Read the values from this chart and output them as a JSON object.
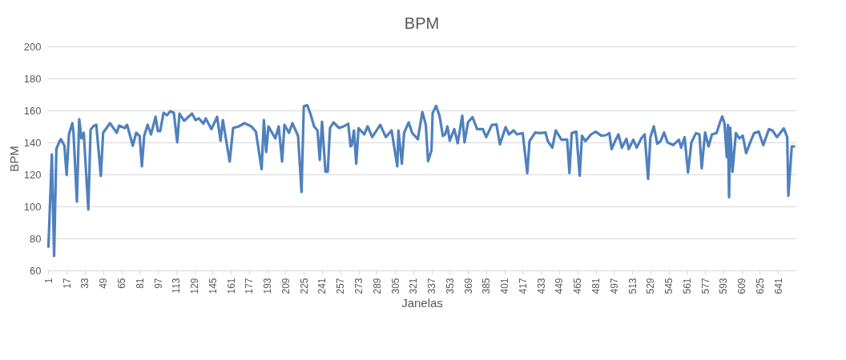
{
  "chart_data": {
    "type": "line",
    "title": "BPM",
    "xlabel": "Janelas",
    "ylabel": "BPM",
    "xlim": [
      0,
      657
    ],
    "xticks": [
      1,
      17,
      33,
      49,
      65,
      81,
      97,
      113,
      129,
      145,
      161,
      177,
      193,
      209,
      225,
      241,
      257,
      273,
      289,
      305,
      321,
      337,
      353,
      369,
      385,
      401,
      417,
      433,
      449,
      465,
      481,
      497,
      513,
      529,
      545,
      561,
      577,
      593,
      609,
      625,
      641
    ],
    "ylim": [
      60,
      200
    ],
    "yticks": [
      60,
      80,
      100,
      120,
      140,
      160,
      180,
      200
    ],
    "grid": "y",
    "legend": false,
    "marker": "none",
    "line_style": "solid",
    "series": [
      {
        "color": "#4f81bd",
        "x": [
          1,
          4,
          6,
          8,
          11,
          12,
          15,
          17,
          19,
          22,
          23,
          26,
          28,
          30,
          32,
          36,
          38,
          41,
          43,
          47,
          49,
          52,
          55,
          57,
          61,
          63,
          68,
          70,
          75,
          78,
          81,
          83,
          85,
          88,
          91,
          95,
          97,
          99,
          102,
          105,
          108,
          111,
          114,
          116,
          120,
          127,
          130,
          133,
          137,
          139,
          144,
          149,
          152,
          154,
          160,
          163,
          168,
          173,
          179,
          183,
          188,
          190,
          192,
          194,
          200,
          203,
          206,
          208,
          212,
          215,
          220,
          223,
          225,
          228,
          231,
          234,
          237,
          239,
          241,
          244,
          246,
          248,
          251,
          256,
          260,
          264,
          266,
          267,
          269,
          271,
          273,
          278,
          281,
          285,
          292,
          297,
          302,
          307,
          308,
          311,
          313,
          317,
          320,
          325,
          329,
          332,
          334,
          337,
          338,
          341,
          344,
          347,
          349,
          351,
          353,
          357,
          360,
          364,
          366,
          369,
          373,
          377,
          382,
          385,
          390,
          394,
          397,
          402,
          405,
          409,
          412,
          417,
          421,
          423,
          428,
          432,
          437,
          439,
          443,
          446,
          451,
          456,
          458,
          460,
          464,
          467,
          469,
          472,
          477,
          481,
          486,
          490,
          493,
          495,
          498,
          501,
          504,
          508,
          510,
          514,
          517,
          521,
          524,
          527,
          529,
          532,
          535,
          538,
          541,
          544,
          549,
          554,
          556,
          559,
          562,
          565,
          569,
          572,
          574,
          577,
          580,
          583,
          587,
          590,
          592,
          594,
          596,
          597,
          598,
          599,
          601,
          604,
          607,
          610,
          613,
          617,
          620,
          624,
          628,
          633,
          636,
          640,
          646,
          649,
          650,
          653,
          656
        ],
        "values": [
          74.2,
          132.5,
          69,
          136,
          141,
          142,
          138,
          119.5,
          145,
          152,
          146,
          103,
          154.5,
          142.5,
          146,
          98,
          148,
          150.5,
          151,
          119,
          146,
          149,
          152,
          150,
          146,
          150.5,
          149,
          151,
          138,
          146,
          144,
          125,
          144,
          151,
          145,
          156,
          147,
          147,
          158.5,
          157,
          159.5,
          158.5,
          140,
          158,
          153.5,
          158,
          154,
          155,
          151.7,
          155,
          148.3,
          156,
          141,
          154,
          128,
          149,
          150,
          152,
          150,
          146.7,
          123.3,
          154,
          134,
          150,
          142.5,
          150,
          128,
          151,
          146,
          152,
          144,
          109,
          162.5,
          163.3,
          157.5,
          150,
          147.5,
          129,
          153,
          121.7,
          121.7,
          149,
          152.5,
          149,
          150,
          151.7,
          137.5,
          138,
          147.5,
          126.7,
          149,
          145,
          150,
          143.3,
          151,
          143.3,
          147.5,
          125,
          147.5,
          126.7,
          146,
          152.5,
          146,
          142,
          159,
          151,
          128.3,
          135,
          158.3,
          162.8,
          156.7,
          144,
          145,
          150,
          141,
          148.3,
          139.5,
          156.7,
          140,
          152.5,
          155.8,
          148.3,
          148.3,
          143.3,
          151,
          151.2,
          138.8,
          149.5,
          145,
          147.5,
          145,
          145.8,
          120.8,
          140.8,
          146.2,
          145.8,
          146.2,
          140.8,
          136.7,
          147.5,
          141.7,
          141.7,
          120.8,
          145.8,
          146.7,
          119.2,
          144.2,
          140.8,
          145,
          146.7,
          144.2,
          144.5,
          145.8,
          135.8,
          140.8,
          145,
          136.7,
          142.2,
          135.8,
          141.7,
          136.7,
          142.5,
          145,
          117.2,
          143.3,
          150,
          139.2,
          140.8,
          146.2,
          140,
          138.3,
          141.7,
          136.7,
          143.3,
          121.2,
          140,
          145.8,
          145,
          123.8,
          146.2,
          137.5,
          145,
          145.8,
          152.5,
          156.2,
          151.7,
          130.8,
          151,
          105.8,
          149.2,
          121.7,
          145.8,
          142.5,
          144.2,
          133.3,
          140.8,
          145.8,
          146.7,
          138.3,
          148.3,
          147.5,
          143.3,
          148.8,
          143.3,
          106.7,
          137.5,
          137.5
        ]
      }
    ]
  }
}
